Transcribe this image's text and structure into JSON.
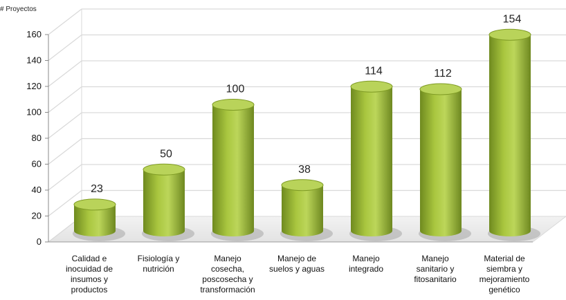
{
  "chart_data": {
    "type": "bar",
    "ylabel": "# Proyectos",
    "ylim": [
      0,
      160
    ],
    "yticks": [
      0,
      20,
      40,
      60,
      80,
      100,
      120,
      140,
      160
    ],
    "grid": true,
    "categories": [
      [
        "Calidad e",
        "inocuidad de",
        "insumos y",
        "productos"
      ],
      [
        "Fisiología y",
        "nutrición"
      ],
      [
        "Manejo",
        "cosecha,",
        "poscosecha y",
        "transformación"
      ],
      [
        "Manejo de",
        "suelos y aguas"
      ],
      [
        "Manejo",
        "integrado"
      ],
      [
        "Manejo",
        "sanitario y",
        "fitosanitario"
      ],
      [
        "Material de",
        "siembra y",
        "mejoramiento",
        "genético"
      ]
    ],
    "values": [
      23,
      50,
      100,
      38,
      114,
      112,
      154
    ],
    "bar_color": "#9dbb3a",
    "bar_top_color": "#b9d35a",
    "grid_color": "#d9d9d9"
  }
}
